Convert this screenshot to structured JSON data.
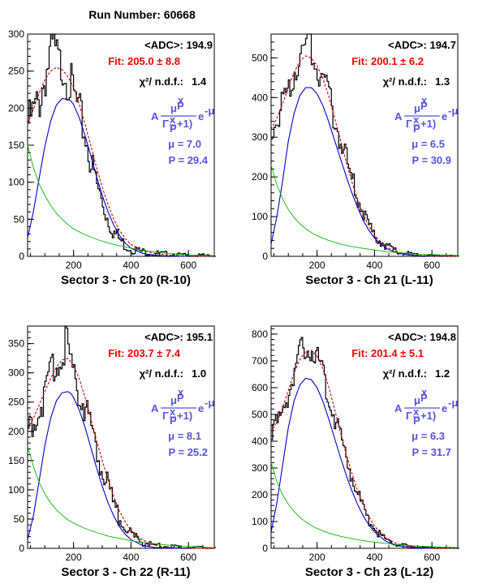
{
  "title": "Run Number: 60668",
  "formula": {
    "A": "A",
    "mu": "μ",
    "x": "x",
    "P": "P",
    "Gamma": "Γ",
    "plus1": "+1)",
    "e": "e",
    "minus_mu": "-μ"
  },
  "colors": {
    "data": "#000000",
    "fit": "#cc0000",
    "signal": "#0000cc",
    "background": "#00bb00",
    "stats_fit": "#ff0000",
    "stats_formula": "#5555dd"
  },
  "chart_data": [
    {
      "type": "line",
      "xlabel": "Sector 3  -  Ch 20   (R-10)",
      "xlim": [
        40,
        690
      ],
      "ylim": [
        0,
        300
      ],
      "xticks": [
        200,
        400,
        600
      ],
      "yticks": [
        0,
        50,
        100,
        150,
        200,
        250,
        300
      ],
      "stats": {
        "adc": "<ADC>: 194.9",
        "fit": "Fit: 205.0 ± 8.8",
        "chi2_label": "χ²/ n.d.f.:",
        "chi2_value": "1.4",
        "mu": "μ =  7.0",
        "p": "P = 29.4"
      },
      "series": [
        {
          "role": "data",
          "x": [
            40,
            60,
            80,
            100,
            120,
            130,
            140,
            150,
            160,
            180,
            200,
            220,
            240,
            260,
            280,
            300,
            320,
            340,
            360,
            380,
            400,
            440,
            480,
            520,
            560,
            600,
            650,
            690
          ],
          "y": [
            180,
            195,
            210,
            245,
            275,
            280,
            265,
            255,
            262,
            240,
            215,
            190,
            160,
            125,
            95,
            70,
            48,
            32,
            22,
            14,
            10,
            6,
            4,
            3,
            2,
            1,
            1,
            0
          ]
        },
        {
          "role": "fit",
          "x": [
            40,
            60,
            80,
            100,
            120,
            140,
            160,
            180,
            200,
            220,
            240,
            260,
            280,
            300,
            320,
            340,
            360,
            380,
            400,
            440,
            480,
            520,
            560,
            600,
            650,
            690
          ],
          "y": [
            180,
            198,
            220,
            238,
            250,
            255,
            252,
            243,
            228,
            205,
            178,
            150,
            120,
            93,
            70,
            50,
            35,
            24,
            16,
            8,
            4,
            2,
            1,
            0.5,
            0,
            0
          ]
        },
        {
          "role": "signal",
          "x": [
            40,
            60,
            80,
            100,
            120,
            140,
            160,
            180,
            190,
            200,
            220,
            240,
            260,
            280,
            300,
            320,
            340,
            360,
            380,
            400,
            440,
            480,
            520,
            560,
            600
          ],
          "y": [
            25,
            60,
            105,
            148,
            182,
            204,
            213,
            212,
            210,
            205,
            187,
            163,
            136,
            108,
            82,
            60,
            42,
            28,
            18,
            11,
            4,
            1.5,
            0.5,
            0,
            0
          ]
        },
        {
          "role": "background",
          "x": [
            40,
            60,
            80,
            100,
            120,
            140,
            160,
            180,
            200,
            240,
            280,
            320,
            360,
            400,
            440,
            480,
            520,
            560,
            600,
            650,
            690
          ],
          "y": [
            150,
            120,
            98,
            82,
            69,
            58,
            50,
            43,
            37,
            29,
            23,
            18,
            14,
            11,
            8,
            6,
            4,
            3,
            2,
            1,
            1
          ]
        }
      ]
    },
    {
      "type": "line",
      "xlabel": "Sector 3  -  Ch 21   (L-11)",
      "xlim": [
        40,
        690
      ],
      "ylim": [
        0,
        560
      ],
      "xticks": [
        200,
        400,
        600
      ],
      "yticks": [
        0,
        100,
        200,
        300,
        400,
        500
      ],
      "stats": {
        "adc": "<ADC>: 194.7",
        "fit": "Fit: 200.1 ± 6.2",
        "chi2_label": "χ²/ n.d.f.:",
        "chi2_value": "1.3",
        "mu": "μ =  6.5",
        "p": "P = 30.9"
      },
      "series": [
        {
          "role": "data",
          "x": [
            40,
            60,
            80,
            100,
            120,
            140,
            160,
            170,
            180,
            200,
            220,
            240,
            260,
            280,
            300,
            320,
            340,
            360,
            380,
            400,
            440,
            480,
            520,
            560,
            600,
            650,
            690
          ],
          "y": [
            320,
            345,
            380,
            420,
            470,
            510,
            530,
            535,
            520,
            480,
            440,
            395,
            345,
            290,
            240,
            190,
            145,
            105,
            75,
            50,
            25,
            12,
            6,
            3,
            2,
            1,
            0
          ]
        },
        {
          "role": "fit",
          "x": [
            40,
            60,
            80,
            100,
            120,
            140,
            160,
            180,
            200,
            220,
            240,
            260,
            280,
            300,
            320,
            340,
            360,
            380,
            400,
            440,
            480,
            520,
            560,
            600,
            650,
            690
          ],
          "y": [
            320,
            348,
            385,
            425,
            463,
            492,
            505,
            500,
            480,
            448,
            405,
            352,
            297,
            242,
            190,
            145,
            108,
            77,
            53,
            24,
            10,
            4,
            2,
            1,
            0,
            0
          ]
        },
        {
          "role": "signal",
          "x": [
            40,
            60,
            80,
            100,
            120,
            140,
            160,
            180,
            200,
            220,
            240,
            260,
            280,
            300,
            320,
            340,
            360,
            380,
            400,
            440,
            480,
            520,
            560,
            600
          ],
          "y": [
            30,
            100,
            190,
            290,
            360,
            405,
            425,
            425,
            410,
            380,
            340,
            295,
            250,
            205,
            162,
            125,
            92,
            66,
            46,
            20,
            8,
            3,
            1,
            0
          ]
        },
        {
          "role": "background",
          "x": [
            40,
            60,
            80,
            100,
            120,
            140,
            160,
            180,
            200,
            240,
            280,
            320,
            360,
            400,
            440,
            480,
            520,
            560,
            600,
            650,
            690
          ],
          "y": [
            230,
            180,
            145,
            118,
            98,
            82,
            70,
            60,
            52,
            40,
            31,
            25,
            20,
            16,
            12,
            9,
            7,
            5,
            4,
            3,
            2
          ]
        }
      ]
    },
    {
      "type": "line",
      "xlabel": "Sector 3  -  Ch 22   (R-11)",
      "xlim": [
        40,
        690
      ],
      "ylim": [
        0,
        380
      ],
      "xticks": [
        200,
        400,
        600
      ],
      "yticks": [
        0,
        50,
        100,
        150,
        200,
        250,
        300,
        350
      ],
      "stats": {
        "adc": "<ADC>: 195.1",
        "fit": "Fit: 203.7 ± 7.4",
        "chi2_label": "χ²/ n.d.f.:",
        "chi2_value": "1.0",
        "mu": "μ =  8.1",
        "p": "P = 25.2"
      },
      "series": [
        {
          "role": "data",
          "x": [
            40,
            60,
            80,
            100,
            120,
            140,
            160,
            170,
            180,
            200,
            220,
            240,
            260,
            280,
            300,
            320,
            340,
            360,
            380,
            400,
            440,
            480,
            520,
            560,
            600,
            650,
            690
          ],
          "y": [
            205,
            220,
            238,
            262,
            290,
            320,
            345,
            350,
            335,
            300,
            270,
            240,
            205,
            170,
            130,
            100,
            72,
            50,
            34,
            22,
            11,
            5,
            3,
            2,
            1,
            1,
            0
          ]
        },
        {
          "role": "fit",
          "x": [
            40,
            60,
            80,
            100,
            120,
            140,
            160,
            180,
            200,
            220,
            240,
            260,
            280,
            300,
            320,
            340,
            360,
            380,
            400,
            440,
            480,
            520,
            560,
            600,
            650,
            690
          ],
          "y": [
            205,
            222,
            245,
            268,
            290,
            310,
            322,
            325,
            313,
            290,
            258,
            222,
            185,
            150,
            117,
            88,
            64,
            45,
            31,
            14,
            6,
            2,
            1,
            0.5,
            0,
            0
          ]
        },
        {
          "role": "signal",
          "x": [
            40,
            60,
            80,
            100,
            120,
            140,
            160,
            180,
            190,
            200,
            220,
            240,
            260,
            280,
            300,
            320,
            340,
            360,
            380,
            400,
            440,
            480,
            520,
            560,
            600
          ],
          "y": [
            15,
            55,
            115,
            175,
            222,
            252,
            266,
            268,
            265,
            258,
            236,
            207,
            173,
            138,
            106,
            78,
            55,
            37,
            24,
            15,
            5,
            1.5,
            0.5,
            0,
            0
          ]
        },
        {
          "role": "background",
          "x": [
            40,
            60,
            80,
            100,
            120,
            140,
            160,
            180,
            200,
            240,
            280,
            320,
            360,
            400,
            440,
            480,
            520,
            560,
            600,
            650,
            690
          ],
          "y": [
            175,
            140,
            113,
            93,
            78,
            66,
            57,
            49,
            43,
            34,
            27,
            21,
            17,
            13,
            10,
            8,
            6,
            4,
            3,
            2,
            1
          ]
        }
      ]
    },
    {
      "type": "line",
      "xlabel": "Sector 3  -  Ch 23   (L-12)",
      "xlim": [
        40,
        690
      ],
      "ylim": [
        0,
        830
      ],
      "xticks": [
        200,
        400,
        600
      ],
      "yticks": [
        0,
        100,
        200,
        300,
        400,
        500,
        600,
        700,
        800
      ],
      "stats": {
        "adc": "<ADC>: 194.8",
        "fit": "Fit: 201.4 ± 5.1",
        "chi2_label": "χ²/ n.d.f.:",
        "chi2_value": "1.2",
        "mu": "μ =  6.3",
        "p": "P = 31.7"
      },
      "series": [
        {
          "role": "data",
          "x": [
            40,
            60,
            80,
            100,
            120,
            140,
            160,
            170,
            180,
            200,
            220,
            240,
            260,
            280,
            300,
            320,
            340,
            360,
            380,
            400,
            440,
            480,
            520,
            560,
            600,
            650,
            690
          ],
          "y": [
            435,
            465,
            520,
            590,
            660,
            720,
            760,
            770,
            745,
            700,
            640,
            570,
            490,
            410,
            335,
            265,
            200,
            145,
            100,
            68,
            32,
            14,
            7,
            4,
            2,
            1,
            0
          ]
        },
        {
          "role": "fit",
          "x": [
            40,
            60,
            80,
            100,
            120,
            140,
            160,
            180,
            200,
            220,
            240,
            260,
            280,
            300,
            320,
            340,
            360,
            380,
            400,
            440,
            480,
            520,
            560,
            600,
            650,
            690
          ],
          "y": [
            435,
            470,
            525,
            590,
            655,
            705,
            735,
            740,
            718,
            672,
            605,
            525,
            440,
            358,
            285,
            218,
            163,
            118,
            83,
            38,
            16,
            6,
            2,
            1,
            0,
            0
          ]
        },
        {
          "role": "signal",
          "x": [
            40,
            60,
            80,
            100,
            120,
            140,
            160,
            180,
            200,
            220,
            240,
            260,
            280,
            300,
            320,
            340,
            360,
            380,
            400,
            440,
            480,
            520,
            560,
            600
          ],
          "y": [
            60,
            170,
            310,
            450,
            550,
            610,
            635,
            630,
            600,
            550,
            485,
            415,
            345,
            278,
            218,
            166,
            123,
            88,
            61,
            26,
            10,
            3,
            1,
            0
          ]
        },
        {
          "role": "background",
          "x": [
            40,
            60,
            80,
            100,
            120,
            140,
            160,
            180,
            200,
            240,
            280,
            320,
            360,
            400,
            440,
            480,
            520,
            560,
            600,
            650,
            690
          ],
          "y": [
            320,
            250,
            200,
            165,
            138,
            116,
            99,
            85,
            74,
            57,
            45,
            36,
            29,
            23,
            18,
            14,
            11,
            8,
            6,
            4,
            3
          ]
        }
      ]
    }
  ]
}
